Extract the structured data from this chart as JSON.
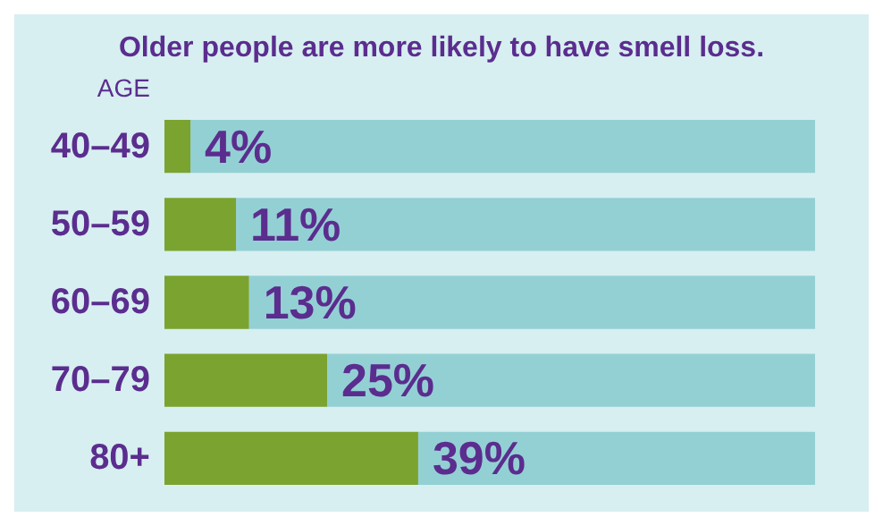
{
  "chart_data": {
    "type": "bar",
    "orientation": "horizontal",
    "stacked": true,
    "title": "Older people are more likely to have smell loss.",
    "ylabel": "AGE",
    "categories": [
      "40–49",
      "50–59",
      "60–69",
      "70–79",
      "80+"
    ],
    "series": [
      {
        "color": "#7ba32f",
        "values": [
          4,
          11,
          13,
          25,
          39
        ],
        "value_labels": [
          "4%",
          "11%",
          "13%",
          "25%",
          "39%"
        ]
      },
      {
        "color": "#93d0d4",
        "values": [
          96,
          89,
          87,
          75,
          61
        ]
      }
    ],
    "xlim": [
      0,
      100
    ],
    "grid": false
  }
}
